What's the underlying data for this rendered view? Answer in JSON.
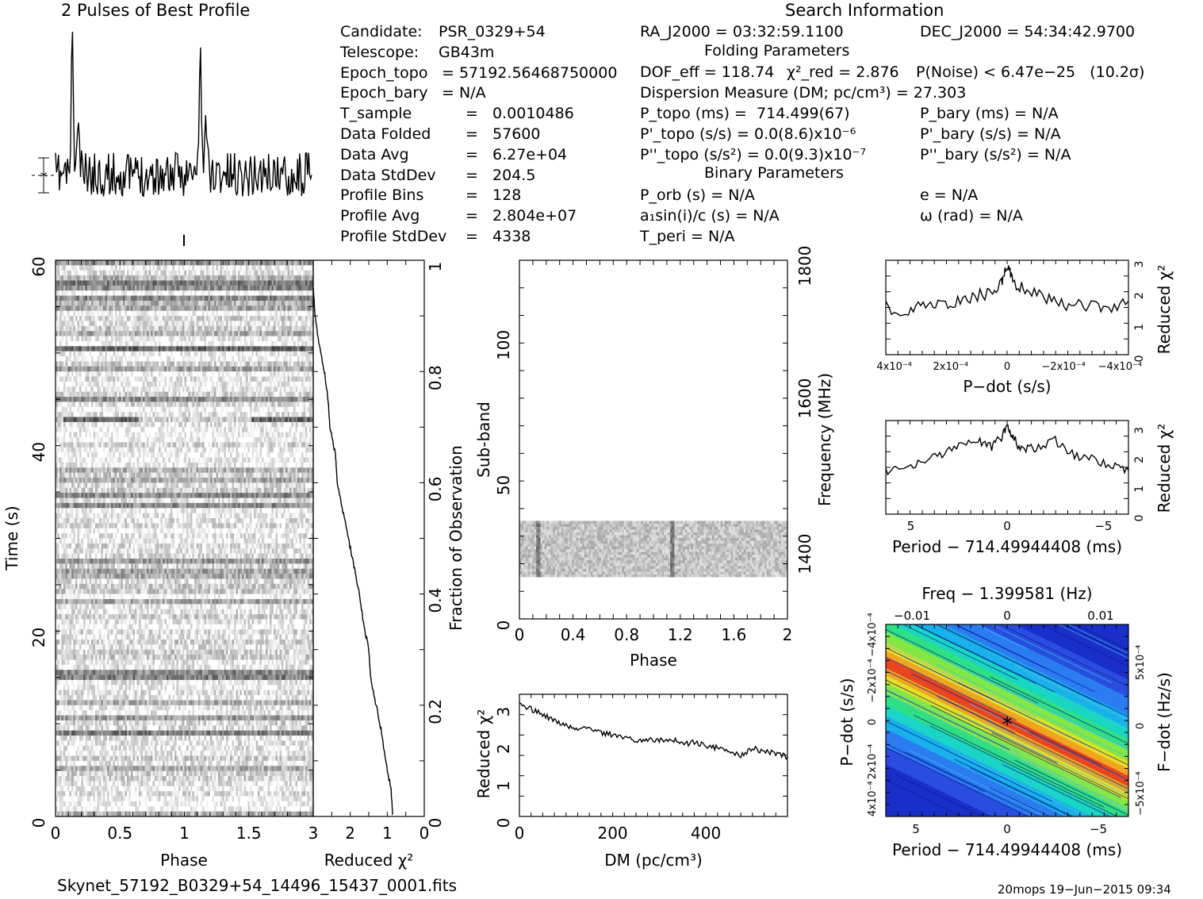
{
  "header": {
    "profile_title": "2 Pulses of Best Profile",
    "search_title": "Search Information",
    "folding_title": "Folding Parameters",
    "binary_title": "Binary Parameters"
  },
  "candidate_info": [
    {
      "label": "Candidate:",
      "value": "PSR_0329+54"
    },
    {
      "label": "Telescope:",
      "value": "GB43m"
    },
    {
      "label": "Epoch_topo",
      "value": "= 57192.56468750000"
    },
    {
      "label": "Epoch_bary",
      "value": "= N/A"
    },
    {
      "label": "T_sample",
      "value": "=   0.0010486"
    },
    {
      "label": "Data Folded",
      "value": "=   57600"
    },
    {
      "label": "Data Avg",
      "value": "=   6.27e+04"
    },
    {
      "label": "Data StdDev",
      "value": "=   204.5"
    },
    {
      "label": "Profile Bins",
      "value": "=   128"
    },
    {
      "label": "Profile Avg",
      "value": "=   2.804e+07"
    },
    {
      "label": "Profile StdDev",
      "value": "=   4338"
    }
  ],
  "search_info": {
    "ra": "RA_J2000 = 03:32:59.1100",
    "dec": "DEC_J2000 = 54:34:42.9700",
    "dof": "DOF_eff = 118.74",
    "chi2": "χ²_red = 2.876",
    "pnoise": "P(Noise) < 6.47e−25   (10.2σ)",
    "dm": "Dispersion Measure (DM; pc/cm³) = 27.303",
    "ptopo": "P_topo (ms) =  714.499(67)",
    "pbary": "P_bary (ms) = N/A",
    "pdtopo": "P'_topo (s/s) = 0.0(8.6)x10⁻⁶",
    "pdbary": "P'_bary (s/s) = N/A",
    "pddtopo": "P''_topo (s/s²) = 0.0(9.3)x10⁻⁷",
    "pddbary": "P''_bary (s/s²) = N/A",
    "porb": "P_orb (s) = N/A",
    "e": "e = N/A",
    "a1": "a₁sin(i)/c (s) = N/A",
    "omega": "ω (rad) = N/A",
    "tperi": "T_peri = N/A"
  },
  "footer": {
    "filename": "Skynet_57192_B0329+54_14496_15437_0001.fits",
    "stamp": "20mops 19−Jun−2015 09:34"
  },
  "colors": {
    "ink": "#000000",
    "chi_surface_low": "#1020c0",
    "chi_surface_high": "#e03010"
  },
  "chart_data": [
    {
      "id": "profile",
      "type": "line",
      "title": "2 Pulses of Best Profile",
      "x_range": [
        0,
        2
      ],
      "peaks_phase": [
        0.13,
        1.13
      ],
      "grid": false
    },
    {
      "id": "time_phase",
      "type": "heatmap",
      "xlabel": "Phase",
      "ylabel": "Time (s)",
      "xlim": [
        0,
        2
      ],
      "ylim": [
        0,
        60
      ],
      "x_ticks": [
        "0",
        "0.5",
        "1",
        "1.5"
      ],
      "y_ticks": [
        "0",
        "20",
        "40",
        "60"
      ]
    },
    {
      "id": "chi_vs_fraction",
      "type": "line",
      "xlabel": "Reduced χ²",
      "ylabel": "Fraction of Observation",
      "xlim": [
        3,
        0
      ],
      "ylim": [
        0,
        1
      ],
      "x_ticks": [
        "3",
        "2",
        "1",
        "0"
      ],
      "y_ticks": [
        "0",
        "0.2",
        "0.4",
        "0.6",
        "0.8",
        "1"
      ],
      "x": [
        0.85,
        0.9,
        1.05,
        1.15,
        1.3,
        1.45,
        1.5,
        1.65,
        1.75,
        1.9,
        2.05,
        2.2,
        2.35,
        2.4,
        2.55,
        2.6,
        2.7,
        2.85,
        2.95,
        3.0
      ],
      "y": [
        0.0,
        0.05,
        0.1,
        0.15,
        0.2,
        0.25,
        0.3,
        0.35,
        0.4,
        0.45,
        0.5,
        0.55,
        0.6,
        0.65,
        0.7,
        0.75,
        0.8,
        0.85,
        0.9,
        0.95
      ]
    },
    {
      "id": "subbands",
      "type": "heatmap",
      "xlabel": "Phase",
      "ylabel": "Sub-band",
      "y2label": "Frequency (MHz)",
      "xlim": [
        0,
        2
      ],
      "ylim": [
        0,
        128
      ],
      "x_ticks": [
        "0",
        "0.4",
        "0.8",
        "1.2",
        "1.6",
        "2"
      ],
      "y_ticks": [
        "0",
        "50",
        "100"
      ],
      "y2_ticks": [
        "1400",
        "1600",
        "1800"
      ],
      "active_subbands": [
        15,
        35
      ]
    },
    {
      "id": "dm_curve",
      "type": "line",
      "xlabel": "DM (pc/cm³)",
      "ylabel": "Reduced χ²",
      "xlim": [
        0,
        575
      ],
      "ylim": [
        0,
        3.3
      ],
      "x_ticks": [
        "0",
        "200",
        "400"
      ],
      "y_ticks": [
        "0",
        "1",
        "2",
        "3"
      ],
      "x": [
        0,
        25,
        50,
        75,
        100,
        125,
        150,
        175,
        200,
        225,
        250,
        275,
        300,
        325,
        350,
        375,
        400,
        425,
        450,
        475,
        500,
        525,
        550,
        575
      ],
      "y": [
        3.0,
        2.9,
        2.75,
        2.6,
        2.45,
        2.35,
        2.4,
        2.25,
        2.2,
        2.15,
        2.05,
        2.1,
        2.05,
        2.1,
        1.95,
        2.0,
        1.9,
        1.85,
        1.75,
        1.65,
        1.85,
        1.75,
        1.7,
        1.6
      ]
    },
    {
      "id": "pdot_curve",
      "type": "line",
      "xlabel": "P−dot (s/s)",
      "ylabel": "Reduced χ²",
      "xlim": [
        0.00043,
        -0.00043
      ],
      "ylim": [
        0,
        3
      ],
      "x_ticks": [
        "4x10⁻⁴",
        "2x10⁻⁴",
        "0",
        "−2x10⁻⁴",
        "−4x10⁻⁴"
      ],
      "y_ticks": [
        "0",
        "1",
        "2",
        "3"
      ],
      "x": [
        0.00043,
        0.00035,
        0.00028,
        0.00021,
        0.00014,
        7e-05,
        2e-05,
        0.0,
        -2e-05,
        -7e-05,
        -0.00014,
        -0.00021,
        -0.00028,
        -0.00035,
        -0.00043
      ],
      "y": [
        1.5,
        1.4,
        1.6,
        1.55,
        1.8,
        1.95,
        2.3,
        2.9,
        2.3,
        2.0,
        1.8,
        1.6,
        1.55,
        1.45,
        1.7
      ]
    },
    {
      "id": "period_curve",
      "type": "line",
      "xlabel": "Period − 714.49944408 (ms)",
      "ylabel": "Reduced χ²",
      "xlim": [
        6.3,
        -6.3
      ],
      "ylim": [
        0,
        3.2
      ],
      "x_ticks": [
        "5",
        "0",
        "−5"
      ],
      "y_ticks": [
        "0",
        "1",
        "2",
        "3"
      ],
      "x": [
        6.3,
        5.5,
        4.5,
        3.5,
        2.5,
        1.5,
        0.8,
        0.3,
        0.0,
        -0.3,
        -0.8,
        -1.5,
        -2.5,
        -3.5,
        -4.5,
        -5.5,
        -6.3
      ],
      "y": [
        1.4,
        1.6,
        1.7,
        2.0,
        2.4,
        2.5,
        2.3,
        2.6,
        3.0,
        2.6,
        2.2,
        2.3,
        2.5,
        2.0,
        1.9,
        1.6,
        1.5
      ]
    },
    {
      "id": "ppdot_plane",
      "type": "heatmap",
      "title": "Freq − 1.399581 (Hz)",
      "xlabel": "Period − 714.49944408 (ms)",
      "ylabel": "P−dot (s/s)",
      "y2label": "F−dot (Hz/s)",
      "x_ticks": [
        "5",
        "0",
        "−5"
      ],
      "x2_ticks": [
        "−0.01",
        "0",
        "0.01"
      ],
      "y_ticks": [
        "4x10⁻⁴",
        "2x10⁻⁴",
        "0",
        "−2x10⁻⁴",
        "−4x10⁻⁴"
      ],
      "y2_ticks": [
        "−5x10⁻⁴",
        "0",
        "5x10⁻⁴"
      ]
    }
  ]
}
